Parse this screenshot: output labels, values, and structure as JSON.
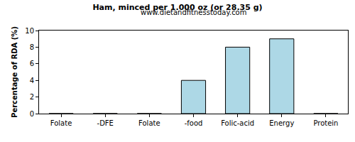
{
  "chart_data": {
    "type": "bar",
    "title": "Ham, minced per 1.000 oz (or 28.35 g)",
    "subtitle": "www.dietandfitnesstoday.com",
    "y_label": "Percentage of RDA (%)",
    "categories": [
      "Folate",
      "-DFE",
      "Folate",
      "-food",
      "Folic-acid",
      "Energy",
      "Protein"
    ],
    "values": [
      0,
      0,
      0,
      4,
      8,
      9,
      0
    ],
    "color": "#add8e6",
    "ylim": [
      0,
      10
    ],
    "yticks": [
      0,
      2,
      4,
      6,
      8,
      10
    ],
    "grid": false
  }
}
